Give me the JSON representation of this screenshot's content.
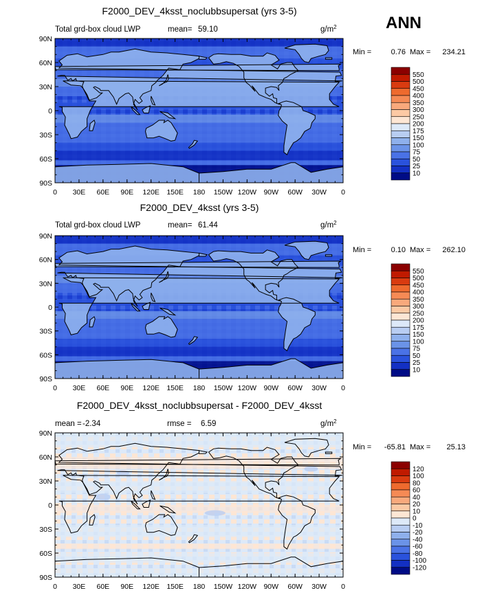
{
  "season": "ANN",
  "chart_data": [
    {
      "type": "heatmap",
      "title": "F2000_DEV_4ksst_noclubbsupersat (yrs 3-5)",
      "variable": "Total grd-box cloud LWP",
      "units": "g/m",
      "units_exp": "2",
      "mean_label": "mean=",
      "mean_value": "59.10",
      "min_label": "Min =",
      "min_value": "0.76",
      "max_label": "Max =",
      "max_value": "234.21",
      "xticks": [
        "0",
        "30E",
        "60E",
        "90E",
        "120E",
        "150E",
        "180",
        "150W",
        "120W",
        "90W",
        "60W",
        "30W",
        "0"
      ],
      "yticks": [
        "90N",
        "60N",
        "30N",
        "0",
        "30S",
        "60S",
        "90S"
      ],
      "colorbar_levels": [
        "550",
        "500",
        "450",
        "400",
        "350",
        "300",
        "250",
        "200",
        "175",
        "150",
        "100",
        "75",
        "50",
        "25",
        "10"
      ],
      "colors": [
        "#8b0000",
        "#c01a00",
        "#d93b10",
        "#ee6a2e",
        "#f58a55",
        "#f9a97c",
        "#fcc9a4",
        "#fde6d4",
        "#dde9f8",
        "#b8cdf2",
        "#8eb0ec",
        "#6b93e8",
        "#4a72e6",
        "#2a52dc",
        "#1330c3",
        "#000c86"
      ]
    },
    {
      "type": "heatmap",
      "title": "F2000_DEV_4ksst (yrs 3-5)",
      "variable": "Total grd-box cloud LWP",
      "units": "g/m",
      "units_exp": "2",
      "mean_label": "mean=",
      "mean_value": "61.44",
      "min_label": "Min =",
      "min_value": "0.10",
      "max_label": "Max =",
      "max_value": "262.10",
      "xticks": [
        "0",
        "30E",
        "60E",
        "90E",
        "120E",
        "150E",
        "180",
        "150W",
        "120W",
        "90W",
        "60W",
        "30W",
        "0"
      ],
      "yticks": [
        "90N",
        "60N",
        "30N",
        "0",
        "30S",
        "60S",
        "90S"
      ],
      "colorbar_levels": [
        "550",
        "500",
        "450",
        "400",
        "350",
        "300",
        "250",
        "200",
        "175",
        "150",
        "100",
        "75",
        "50",
        "25",
        "10"
      ],
      "colors": [
        "#8b0000",
        "#c01a00",
        "#d93b10",
        "#ee6a2e",
        "#f58a55",
        "#f9a97c",
        "#fcc9a4",
        "#fde6d4",
        "#dde9f8",
        "#b8cdf2",
        "#8eb0ec",
        "#6b93e8",
        "#4a72e6",
        "#2a52dc",
        "#1330c3",
        "#000c86"
      ]
    },
    {
      "type": "heatmap",
      "title": "F2000_DEV_4ksst_noclubbsupersat - F2000_DEV_4ksst",
      "mean_label": "mean =",
      "mean_value": "-2.34",
      "rmse_label": "rmse =",
      "rmse_value": "6.59",
      "units": "g/m",
      "units_exp": "2",
      "min_label": "Min =",
      "min_value": "-65.81",
      "max_label": "Max =",
      "max_value": "25.13",
      "xticks": [
        "0",
        "30E",
        "60E",
        "90E",
        "120E",
        "150E",
        "180",
        "150W",
        "120W",
        "90W",
        "60W",
        "30W",
        "0"
      ],
      "yticks": [
        "90N",
        "60N",
        "30N",
        "0",
        "30S",
        "60S",
        "90S"
      ],
      "colorbar_levels": [
        "120",
        "100",
        "80",
        "60",
        "40",
        "20",
        "10",
        "0",
        "-10",
        "-20",
        "-40",
        "-60",
        "-80",
        "-100",
        "-120"
      ],
      "colors": [
        "#8b0000",
        "#c01a00",
        "#d93b10",
        "#ee6a2e",
        "#f58a55",
        "#f9a97c",
        "#fcc9a4",
        "#fde6d4",
        "#dde9f8",
        "#b8cdf2",
        "#8eb0ec",
        "#6b93e8",
        "#4a72e6",
        "#2a52dc",
        "#1330c3",
        "#000c86"
      ]
    }
  ]
}
